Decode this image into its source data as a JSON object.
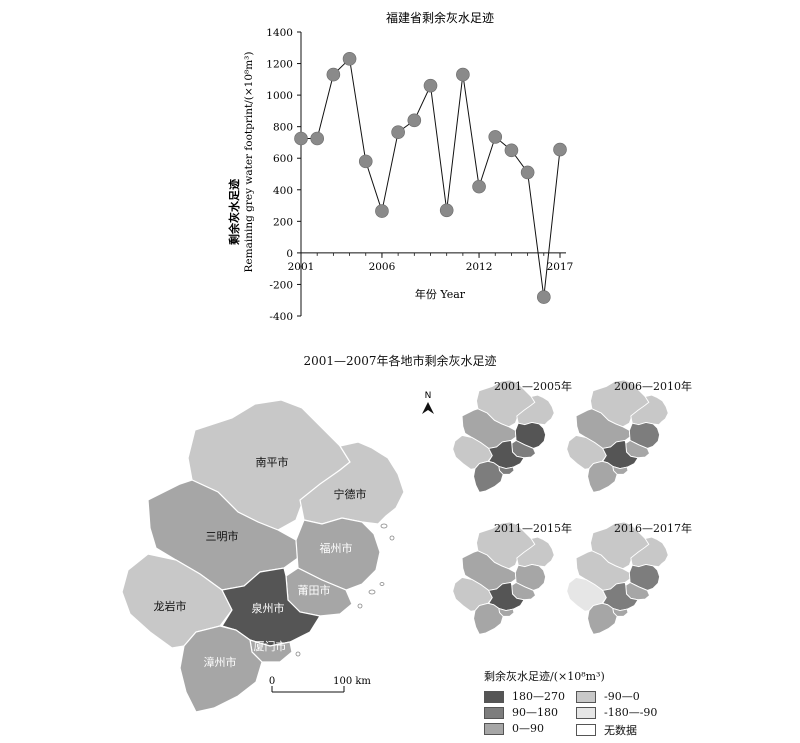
{
  "chart_data": {
    "type": "line",
    "title": "福建省剩余灰水足迹",
    "xlabel": "年份 Year",
    "ylabel_cn": "剩余灰水足迹",
    "ylabel_en": "Remaining grey water footprint/(×10⁸m³)",
    "xlim": [
      2001,
      2017
    ],
    "ylim": [
      -400,
      1400
    ],
    "xticks": [
      2001,
      2006,
      2012,
      2017
    ],
    "yticks": [
      -400,
      -200,
      0,
      200,
      400,
      600,
      800,
      1000,
      1200,
      1400
    ],
    "series": [
      {
        "x": [
          2001,
          2002,
          2003,
          2004,
          2005,
          2006,
          2007,
          2008,
          2009,
          2010,
          2011,
          2012,
          2013,
          2014,
          2015,
          2016,
          2017
        ],
        "values": [
          725,
          725,
          1130,
          1230,
          580,
          265,
          765,
          840,
          1060,
          270,
          1130,
          420,
          735,
          650,
          510,
          -280,
          655
        ]
      }
    ]
  },
  "map": {
    "title": "2001—2007年各地市剩余灰水足迹",
    "north_label": "N",
    "scale_start": "0",
    "scale_end": "100 km",
    "cities": {
      "nanping": "南平市",
      "ningde": "宁德市",
      "sanming": "三明市",
      "fuzhou": "福州市",
      "putian": "莆田市",
      "longyan": "龙岩市",
      "quanzhou": "泉州市",
      "xiamen": "厦门市",
      "zhangzhou": "漳州市"
    },
    "panels": [
      "2001—2005年",
      "2006—2010年",
      "2011—2015年",
      "2016—2017年"
    ],
    "colors": {
      "c180_270": "#555555",
      "c90_180": "#7d7d7d",
      "c0_90": "#a6a6a6",
      "cn90_0": "#c8c8c8",
      "cn180_n90": "#e6e6e6",
      "nodata": "#ffffff"
    },
    "main_classes": {
      "nanping": "cn90_0",
      "ningde": "cn90_0",
      "sanming": "c0_90",
      "fuzhou": "c0_90",
      "putian": "c0_90",
      "longyan": "cn90_0",
      "quanzhou": "c180_270",
      "xiamen": "c0_90",
      "zhangzhou": "c0_90"
    },
    "panel_classes": [
      {
        "nanping": "cn90_0",
        "ningde": "cn90_0",
        "sanming": "c0_90",
        "fuzhou": "c180_270",
        "putian": "c90_180",
        "longyan": "cn90_0",
        "quanzhou": "c180_270",
        "xiamen": "c90_180",
        "zhangzhou": "c90_180"
      },
      {
        "nanping": "cn90_0",
        "ningde": "cn90_0",
        "sanming": "c0_90",
        "fuzhou": "c90_180",
        "putian": "c0_90",
        "longyan": "cn90_0",
        "quanzhou": "c180_270",
        "xiamen": "c0_90",
        "zhangzhou": "c0_90"
      },
      {
        "nanping": "cn90_0",
        "ningde": "cn90_0",
        "sanming": "c0_90",
        "fuzhou": "c0_90",
        "putian": "c0_90",
        "longyan": "cn90_0",
        "quanzhou": "c180_270",
        "xiamen": "c0_90",
        "zhangzhou": "c0_90"
      },
      {
        "nanping": "cn90_0",
        "ningde": "cn90_0",
        "sanming": "cn90_0",
        "fuzhou": "c90_180",
        "putian": "c0_90",
        "longyan": "cn180_n90",
        "quanzhou": "c90_180",
        "xiamen": "c0_90",
        "zhangzhou": "c0_90"
      }
    ],
    "legend": {
      "title": "剩余灰水足迹/(×10⁸m³)",
      "items": [
        {
          "label": "180—270",
          "color": "#555555"
        },
        {
          "label": "-90—0",
          "color": "#c8c8c8"
        },
        {
          "label": "90—180",
          "color": "#7d7d7d"
        },
        {
          "label": "-180—-90",
          "color": "#e6e6e6"
        },
        {
          "label": "0—90",
          "color": "#a6a6a6"
        },
        {
          "label": "无数据",
          "color": "#ffffff"
        }
      ]
    }
  }
}
